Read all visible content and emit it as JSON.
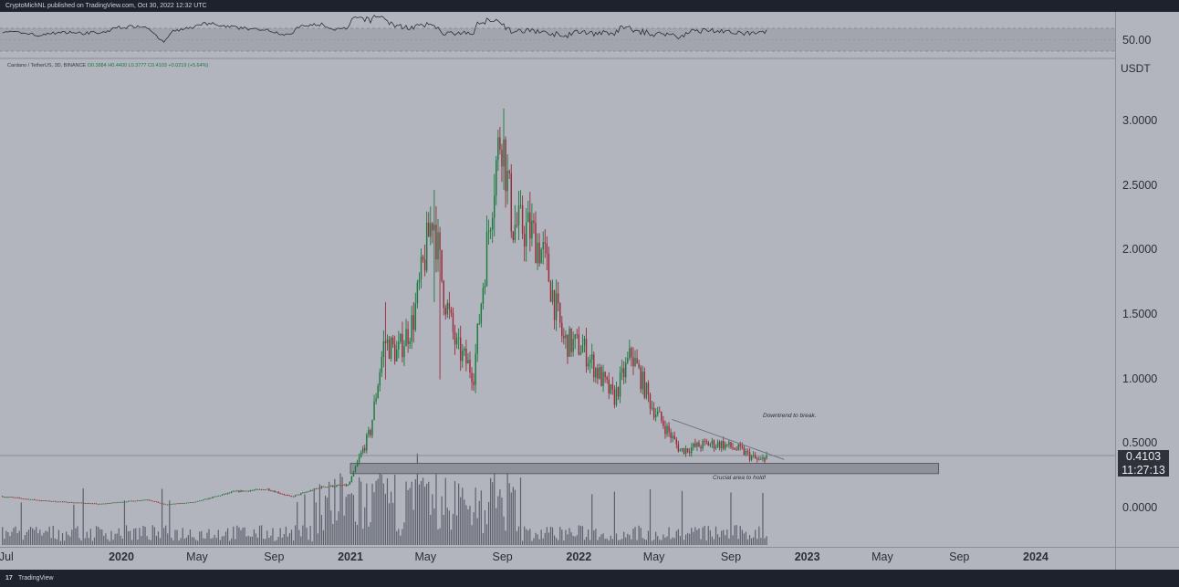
{
  "header": {
    "published": "CryptoMichNL published on TradingView.com, Oct 30, 2022 12:32 UTC"
  },
  "footer": {
    "logo_glyph": "17",
    "brand": "TradingView"
  },
  "legend": {
    "symbol": "Cardano / TetherUS, 3D, BINANCE",
    "open": "O0.3884",
    "high": "H0.4400",
    "low": "L0.3777",
    "close": "C0.4103",
    "change": "+0.0219 (+5.64%)"
  },
  "price_scale": {
    "unit": "USDT"
  },
  "last_price": {
    "value": "0.4103",
    "countdown": "11:27:13"
  },
  "rsi": {
    "level_label": "50.00"
  },
  "annotations": {
    "trendline_note": "Downtrend to break.",
    "zone_note": "Crucial area to hold!"
  },
  "colors": {
    "background": "#b2b5be",
    "up": "#1b7a3d",
    "down": "#9c2a3a",
    "zone": "#8e9199",
    "panel": "#1e222d"
  },
  "chart_data": {
    "type": "candlestick",
    "symbol": "ADA/USDT",
    "interval": "3D",
    "exchange": "BINANCE",
    "ylim": [
      -0.25,
      3.3
    ],
    "y_ticks": [
      "3.0000",
      "2.5000",
      "2.0000",
      "1.5000",
      "1.0000",
      "0.5000",
      "0.0000"
    ],
    "x_ticks": [
      {
        "label": "Jul",
        "date": "2019-07-01",
        "bold": false
      },
      {
        "label": "2020",
        "date": "2020-01-01",
        "bold": true
      },
      {
        "label": "May",
        "date": "2020-05-01",
        "bold": false
      },
      {
        "label": "Sep",
        "date": "2020-09-01",
        "bold": false
      },
      {
        "label": "2021",
        "date": "2021-01-01",
        "bold": true
      },
      {
        "label": "May",
        "date": "2021-05-01",
        "bold": false
      },
      {
        "label": "Sep",
        "date": "2021-09-01",
        "bold": false
      },
      {
        "label": "2022",
        "date": "2022-01-01",
        "bold": true
      },
      {
        "label": "May",
        "date": "2022-05-01",
        "bold": false
      },
      {
        "label": "Sep",
        "date": "2022-09-01",
        "bold": false
      },
      {
        "label": "2023",
        "date": "2023-01-01",
        "bold": true
      },
      {
        "label": "May",
        "date": "2023-05-01",
        "bold": false
      },
      {
        "label": "Sep",
        "date": "2023-09-01",
        "bold": false
      },
      {
        "label": "2024",
        "date": "2024-01-01",
        "bold": true
      }
    ],
    "price_path": [
      [
        "2019-06-25",
        0.095
      ],
      [
        "2019-09-01",
        0.06
      ],
      [
        "2019-12-01",
        0.035
      ],
      [
        "2020-02-15",
        0.07
      ],
      [
        "2020-03-13",
        0.03
      ],
      [
        "2020-05-01",
        0.05
      ],
      [
        "2020-07-01",
        0.13
      ],
      [
        "2020-08-25",
        0.15
      ],
      [
        "2020-10-01",
        0.09
      ],
      [
        "2020-11-22",
        0.17
      ],
      [
        "2021-01-01",
        0.18
      ],
      [
        "2021-02-05",
        0.6
      ],
      [
        "2021-02-27",
        1.3
      ],
      [
        "2021-03-20",
        1.2
      ],
      [
        "2021-04-14",
        1.45
      ],
      [
        "2021-05-16",
        2.3
      ],
      [
        "2021-06-01",
        1.7
      ],
      [
        "2021-06-22",
        1.25
      ],
      [
        "2021-07-20",
        1.05
      ],
      [
        "2021-08-20",
        2.5
      ],
      [
        "2021-09-02",
        2.95
      ],
      [
        "2021-09-20",
        2.2
      ],
      [
        "2021-10-20",
        2.15
      ],
      [
        "2021-11-10",
        1.95
      ],
      [
        "2021-12-10",
        1.3
      ],
      [
        "2022-01-10",
        1.25
      ],
      [
        "2022-02-10",
        1.0
      ],
      [
        "2022-03-01",
        0.85
      ],
      [
        "2022-03-29",
        1.2
      ],
      [
        "2022-04-30",
        0.8
      ],
      [
        "2022-06-15",
        0.45
      ],
      [
        "2022-07-28",
        0.5
      ],
      [
        "2022-08-20",
        0.5
      ],
      [
        "2022-09-20",
        0.45
      ],
      [
        "2022-10-21",
        0.36
      ],
      [
        "2022-10-30",
        0.41
      ]
    ],
    "spikes": [
      [
        "2021-02-27",
        1.3,
        1.6,
        1.0
      ],
      [
        "2021-05-16",
        2.3,
        2.47,
        1.6
      ],
      [
        "2021-09-02",
        2.95,
        3.1,
        2.6
      ],
      [
        "2021-05-24",
        1.7,
        1.9,
        1.0
      ],
      [
        "2022-03-29",
        1.2,
        1.25,
        1.05
      ]
    ],
    "trendline": {
      "from": [
        "2022-05-30",
        0.69
      ],
      "to": [
        "2022-11-25",
        0.38
      ]
    },
    "support_zone": {
      "from_date": "2021-01-01",
      "to_date": "2023-07-30",
      "low": 0.27,
      "high": 0.35
    },
    "rsi": {
      "level": 50
    }
  }
}
